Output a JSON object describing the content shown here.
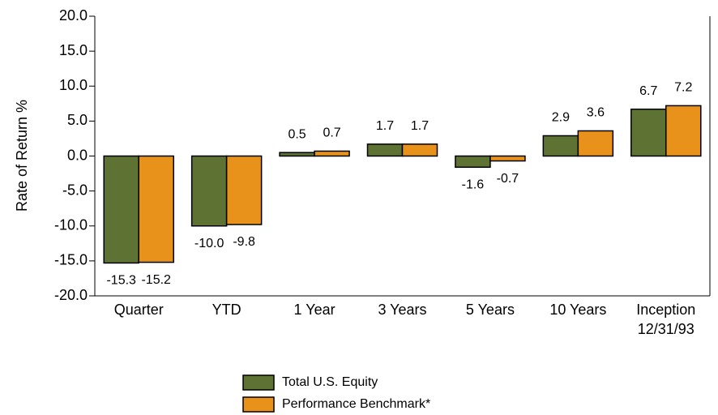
{
  "chart_data": {
    "type": "bar",
    "y_label": "Rate of Return %",
    "categories": [
      "Quarter",
      "YTD",
      "1 Year",
      "3 Years",
      "5 Years",
      "10 Years",
      "Inception\n12/31/93"
    ],
    "series": [
      {
        "name": "Total U.S. Equity",
        "color": "#5e7233",
        "values": [
          -15.3,
          -10.0,
          0.5,
          1.7,
          -1.6,
          2.9,
          6.7
        ],
        "value_labels": [
          "-15.3",
          "-10.0",
          "0.5",
          "1.7",
          "-1.6",
          "2.9",
          "6.7"
        ]
      },
      {
        "name": "Performance Benchmark*",
        "color": "#e8921c",
        "values": [
          -15.2,
          -9.8,
          0.7,
          1.7,
          -0.7,
          3.6,
          7.2
        ],
        "value_labels": [
          "-15.2",
          "-9.8",
          "0.7",
          "1.7",
          "-0.7",
          "3.6",
          "7.2"
        ]
      }
    ],
    "ylim": [
      -20,
      20
    ],
    "yticks": [
      {
        "value": -20,
        "label": "-20.0"
      },
      {
        "value": -15,
        "label": "-15.0"
      },
      {
        "value": -10,
        "label": "-10.0"
      },
      {
        "value": -5,
        "label": "-5.0"
      },
      {
        "value": 0,
        "label": "0.0"
      },
      {
        "value": 5,
        "label": "5.0"
      },
      {
        "value": 10,
        "label": "10.0"
      },
      {
        "value": 15,
        "label": "15.0"
      },
      {
        "value": 20,
        "label": "20.0"
      }
    ],
    "grid": false,
    "legend": "bottom"
  }
}
